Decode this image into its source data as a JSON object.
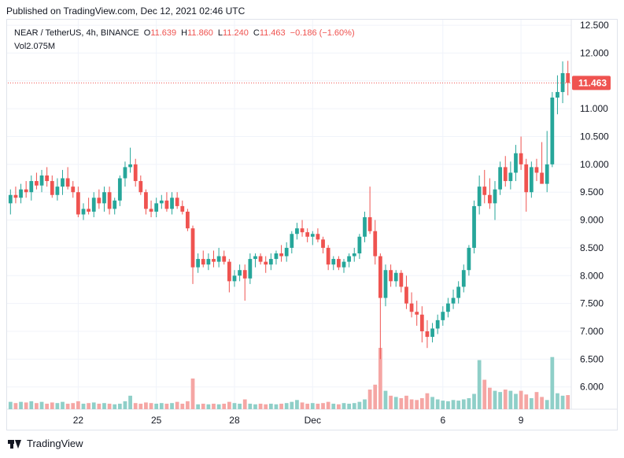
{
  "published": "Published on TradingView.com, Dec 12, 2021 02:46 UTC",
  "legend": {
    "symbol": "NEAR / TetherUS, 4h, BINANCE",
    "o_label": "O",
    "o_value": "11.639",
    "h_label": "H",
    "h_value": "11.860",
    "l_label": "L",
    "l_value": "11.240",
    "c_label": "C",
    "c_value": "11.463",
    "change": "−0.186 (−1.60%)",
    "vol_label": "Vol",
    "vol_value": "2.075M"
  },
  "footer": {
    "brand": "TradingView",
    "icon": "tradingview-logo-icon"
  },
  "colors": {
    "up": "#26a69a",
    "down": "#ef5350",
    "up_vol": "#8fcfc8",
    "down_vol": "#f5a6a4",
    "grid": "#f0f3fa"
  },
  "chart_data": {
    "type": "candlestick",
    "y_ticks": [
      "12.500",
      "12.000",
      "11.500",
      "11.000",
      "10.500",
      "10.000",
      "9.500",
      "9.000",
      "8.500",
      "8.000",
      "7.500",
      "7.000",
      "6.500",
      "6.000"
    ],
    "ylim": [
      5.6,
      12.6
    ],
    "x_ticks": [
      {
        "label": "22",
        "index": 13
      },
      {
        "label": "25",
        "index": 28
      },
      {
        "label": "28",
        "index": 43
      },
      {
        "label": "Dec",
        "index": 58
      },
      {
        "label": "6",
        "index": 83
      },
      {
        "label": "9",
        "index": 98
      }
    ],
    "last_price": "11.463",
    "ohlc": [
      [
        9.3,
        9.55,
        9.1,
        9.45
      ],
      [
        9.45,
        9.6,
        9.3,
        9.4
      ],
      [
        9.4,
        9.65,
        9.3,
        9.55
      ],
      [
        9.55,
        9.7,
        9.4,
        9.5
      ],
      [
        9.5,
        9.8,
        9.35,
        9.7
      ],
      [
        9.7,
        9.85,
        9.55,
        9.62
      ],
      [
        9.62,
        9.9,
        9.5,
        9.8
      ],
      [
        9.8,
        9.95,
        9.6,
        9.7
      ],
      [
        9.7,
        9.8,
        9.4,
        9.45
      ],
      [
        9.45,
        9.75,
        9.35,
        9.6
      ],
      [
        9.6,
        9.9,
        9.45,
        9.75
      ],
      [
        9.75,
        9.95,
        9.55,
        9.6
      ],
      [
        9.6,
        9.7,
        9.4,
        9.5
      ],
      [
        9.5,
        9.6,
        9.05,
        9.1
      ],
      [
        9.1,
        9.3,
        9.0,
        9.2
      ],
      [
        9.2,
        9.4,
        9.1,
        9.15
      ],
      [
        9.15,
        9.5,
        9.05,
        9.4
      ],
      [
        9.4,
        9.55,
        9.2,
        9.3
      ],
      [
        9.3,
        9.6,
        9.15,
        9.5
      ],
      [
        9.5,
        9.6,
        9.1,
        9.2
      ],
      [
        9.2,
        9.4,
        9.1,
        9.35
      ],
      [
        9.35,
        9.8,
        9.25,
        9.75
      ],
      [
        9.75,
        10.05,
        9.6,
        9.95
      ],
      [
        9.95,
        10.3,
        9.85,
        10.0
      ],
      [
        10.0,
        10.1,
        9.6,
        9.7
      ],
      [
        9.7,
        9.8,
        9.45,
        9.5
      ],
      [
        9.5,
        9.55,
        9.1,
        9.2
      ],
      [
        9.2,
        9.35,
        9.05,
        9.15
      ],
      [
        9.15,
        9.4,
        9.05,
        9.3
      ],
      [
        9.3,
        9.45,
        9.2,
        9.35
      ],
      [
        9.35,
        9.5,
        9.15,
        9.2
      ],
      [
        9.2,
        9.5,
        9.1,
        9.4
      ],
      [
        9.4,
        9.5,
        9.2,
        9.25
      ],
      [
        9.25,
        9.35,
        9.1,
        9.15
      ],
      [
        9.15,
        9.2,
        8.8,
        8.85
      ],
      [
        8.85,
        8.9,
        7.85,
        8.15
      ],
      [
        8.15,
        8.4,
        8.05,
        8.3
      ],
      [
        8.3,
        8.45,
        8.15,
        8.2
      ],
      [
        8.2,
        8.4,
        8.1,
        8.3
      ],
      [
        8.3,
        8.45,
        8.15,
        8.25
      ],
      [
        8.25,
        8.5,
        8.15,
        8.35
      ],
      [
        8.35,
        8.45,
        8.2,
        8.25
      ],
      [
        8.25,
        8.3,
        7.7,
        7.9
      ],
      [
        7.9,
        8.1,
        7.8,
        8.0
      ],
      [
        8.0,
        8.2,
        7.9,
        8.1
      ],
      [
        8.1,
        8.2,
        7.55,
        7.95
      ],
      [
        7.95,
        8.4,
        7.85,
        8.3
      ],
      [
        8.3,
        8.4,
        8.15,
        8.35
      ],
      [
        8.35,
        8.4,
        8.2,
        8.25
      ],
      [
        8.25,
        8.35,
        8.05,
        8.2
      ],
      [
        8.2,
        8.4,
        8.1,
        8.3
      ],
      [
        8.3,
        8.45,
        8.2,
        8.4
      ],
      [
        8.4,
        8.55,
        8.25,
        8.35
      ],
      [
        8.35,
        8.6,
        8.25,
        8.5
      ],
      [
        8.5,
        8.8,
        8.4,
        8.75
      ],
      [
        8.75,
        8.95,
        8.65,
        8.85
      ],
      [
        8.85,
        9.0,
        8.7,
        8.78
      ],
      [
        8.78,
        8.85,
        8.6,
        8.7
      ],
      [
        8.7,
        8.8,
        8.55,
        8.75
      ],
      [
        8.75,
        8.85,
        8.6,
        8.65
      ],
      [
        8.65,
        8.7,
        8.4,
        8.5
      ],
      [
        8.5,
        8.55,
        8.1,
        8.2
      ],
      [
        8.2,
        8.35,
        8.1,
        8.3
      ],
      [
        8.3,
        8.35,
        8.1,
        8.15
      ],
      [
        8.15,
        8.3,
        8.05,
        8.25
      ],
      [
        8.25,
        8.4,
        8.15,
        8.35
      ],
      [
        8.35,
        8.5,
        8.25,
        8.4
      ],
      [
        8.4,
        8.75,
        8.3,
        8.7
      ],
      [
        8.7,
        9.15,
        8.6,
        9.05
      ],
      [
        9.05,
        9.6,
        8.75,
        8.8
      ],
      [
        8.8,
        9.0,
        8.2,
        8.35
      ],
      [
        8.35,
        8.4,
        6.5,
        7.6
      ],
      [
        7.6,
        8.2,
        7.45,
        8.1
      ],
      [
        8.1,
        8.2,
        7.8,
        7.9
      ],
      [
        7.9,
        8.1,
        7.8,
        8.05
      ],
      [
        8.05,
        8.1,
        7.7,
        7.8
      ],
      [
        7.8,
        8.0,
        7.4,
        7.5
      ],
      [
        7.5,
        7.7,
        7.25,
        7.35
      ],
      [
        7.35,
        7.55,
        7.1,
        7.3
      ],
      [
        7.3,
        7.45,
        6.8,
        7.0
      ],
      [
        7.0,
        7.2,
        6.7,
        6.9
      ],
      [
        6.9,
        7.15,
        6.8,
        7.05
      ],
      [
        7.05,
        7.3,
        6.95,
        7.2
      ],
      [
        7.2,
        7.45,
        7.1,
        7.35
      ],
      [
        7.35,
        7.6,
        7.25,
        7.5
      ],
      [
        7.5,
        7.75,
        7.4,
        7.6
      ],
      [
        7.6,
        7.9,
        7.5,
        7.8
      ],
      [
        7.8,
        8.2,
        7.7,
        8.1
      ],
      [
        8.1,
        8.55,
        8.0,
        8.5
      ],
      [
        8.5,
        9.35,
        8.4,
        9.25
      ],
      [
        9.25,
        9.8,
        9.1,
        9.6
      ],
      [
        9.6,
        9.9,
        9.3,
        9.45
      ],
      [
        9.45,
        9.75,
        9.2,
        9.3
      ],
      [
        9.3,
        9.7,
        9.0,
        9.55
      ],
      [
        9.55,
        10.05,
        9.45,
        9.95
      ],
      [
        9.95,
        10.15,
        9.6,
        9.7
      ],
      [
        9.7,
        10.05,
        9.55,
        9.85
      ],
      [
        9.85,
        10.35,
        9.7,
        10.2
      ],
      [
        10.2,
        10.5,
        9.9,
        10.0
      ],
      [
        10.0,
        10.1,
        9.15,
        9.5
      ],
      [
        9.5,
        10.05,
        9.4,
        9.95
      ],
      [
        9.95,
        10.1,
        9.7,
        9.85
      ],
      [
        9.85,
        10.4,
        9.7,
        9.65
      ],
      [
        9.65,
        10.6,
        9.5,
        10.0
      ],
      [
        10.0,
        11.3,
        9.95,
        11.2
      ],
      [
        11.2,
        11.6,
        10.9,
        11.3
      ],
      [
        11.3,
        11.85,
        11.1,
        11.639
      ],
      [
        11.639,
        11.86,
        11.24,
        11.463
      ]
    ],
    "volume_rel": [
      0.12,
      0.1,
      0.12,
      0.11,
      0.13,
      0.1,
      0.12,
      0.09,
      0.11,
      0.1,
      0.12,
      0.09,
      0.1,
      0.13,
      0.09,
      0.1,
      0.11,
      0.09,
      0.1,
      0.09,
      0.08,
      0.09,
      0.13,
      0.22,
      0.1,
      0.09,
      0.11,
      0.1,
      0.09,
      0.1,
      0.09,
      0.1,
      0.12,
      0.09,
      0.13,
      0.5,
      0.08,
      0.09,
      0.08,
      0.09,
      0.08,
      0.09,
      0.12,
      0.1,
      0.09,
      0.16,
      0.09,
      0.08,
      0.09,
      0.08,
      0.09,
      0.08,
      0.09,
      0.1,
      0.12,
      0.15,
      0.11,
      0.09,
      0.1,
      0.09,
      0.1,
      0.12,
      0.09,
      0.08,
      0.1,
      0.09,
      0.1,
      0.12,
      0.16,
      0.32,
      0.4,
      1.0,
      0.3,
      0.22,
      0.2,
      0.18,
      0.22,
      0.16,
      0.15,
      0.18,
      0.26,
      0.2,
      0.16,
      0.14,
      0.13,
      0.15,
      0.14,
      0.16,
      0.18,
      0.25,
      0.8,
      0.48,
      0.35,
      0.3,
      0.28,
      0.32,
      0.3,
      0.25,
      0.3,
      0.24,
      0.18,
      0.28,
      0.2,
      0.15,
      0.85,
      0.26,
      0.22,
      0.23
    ]
  }
}
